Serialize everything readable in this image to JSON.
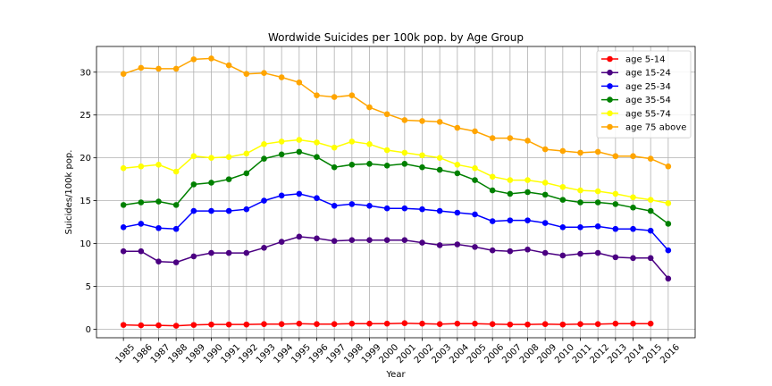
{
  "chart_data": {
    "type": "line",
    "title": "Wordwide Suicides per 100k pop. by Age Group",
    "xlabel": "Year",
    "ylabel": "Suicides/100k pop.",
    "ylim": [
      -1,
      33
    ],
    "yticks": [
      0,
      5,
      10,
      15,
      20,
      25,
      30
    ],
    "grid": true,
    "legend_position": "top-right",
    "x": [
      1985,
      1986,
      1987,
      1988,
      1989,
      1990,
      1991,
      1992,
      1993,
      1994,
      1995,
      1996,
      1997,
      1998,
      1999,
      2000,
      2001,
      2002,
      2003,
      2004,
      2005,
      2006,
      2007,
      2008,
      2009,
      2010,
      2011,
      2012,
      2013,
      2014,
      2015,
      2016
    ],
    "series": [
      {
        "name": "age 5-14",
        "color": "#ff0000",
        "values": [
          0.5,
          0.45,
          0.45,
          0.4,
          0.5,
          0.55,
          0.55,
          0.55,
          0.6,
          0.6,
          0.65,
          0.6,
          0.6,
          0.65,
          0.65,
          0.65,
          0.7,
          0.65,
          0.6,
          0.65,
          0.65,
          0.6,
          0.55,
          0.55,
          0.6,
          0.55,
          0.6,
          0.6,
          0.65,
          0.65,
          0.65,
          null
        ]
      },
      {
        "name": "age 15-24",
        "color": "#4b0082",
        "values": [
          9.1,
          9.1,
          7.9,
          7.8,
          8.5,
          8.9,
          8.9,
          8.9,
          9.5,
          10.2,
          10.8,
          10.6,
          10.3,
          10.4,
          10.4,
          10.4,
          10.4,
          10.1,
          9.8,
          9.9,
          9.6,
          9.2,
          9.1,
          9.3,
          8.9,
          8.6,
          8.8,
          8.9,
          8.4,
          8.3,
          8.3,
          5.9
        ]
      },
      {
        "name": "age 25-34",
        "color": "#0000ff",
        "values": [
          11.9,
          12.3,
          11.8,
          11.7,
          13.8,
          13.8,
          13.8,
          14.0,
          15.0,
          15.6,
          15.8,
          15.3,
          14.4,
          14.6,
          14.4,
          14.1,
          14.1,
          14.0,
          13.8,
          13.6,
          13.4,
          12.6,
          12.7,
          12.7,
          12.4,
          11.9,
          11.9,
          12.0,
          11.7,
          11.7,
          11.5,
          9.2
        ]
      },
      {
        "name": "age 35-54",
        "color": "#008000",
        "values": [
          14.5,
          14.8,
          14.9,
          14.5,
          16.9,
          17.1,
          17.5,
          18.2,
          19.9,
          20.4,
          20.7,
          20.1,
          18.9,
          19.2,
          19.3,
          19.1,
          19.3,
          18.9,
          18.6,
          18.2,
          17.4,
          16.2,
          15.8,
          16.0,
          15.7,
          15.1,
          14.8,
          14.8,
          14.6,
          14.2,
          13.8,
          12.3
        ]
      },
      {
        "name": "age 55-74",
        "color": "#ffff00",
        "values": [
          18.8,
          19.0,
          19.2,
          18.4,
          20.2,
          20.0,
          20.1,
          20.5,
          21.6,
          21.9,
          22.1,
          21.8,
          21.2,
          21.9,
          21.6,
          20.9,
          20.6,
          20.3,
          20.0,
          19.2,
          18.8,
          17.8,
          17.4,
          17.4,
          17.1,
          16.6,
          16.2,
          16.1,
          15.8,
          15.4,
          15.1,
          14.7
        ]
      },
      {
        "name": "age 75 above",
        "color": "#ffa500",
        "values": [
          29.8,
          30.5,
          30.4,
          30.4,
          31.5,
          31.6,
          30.8,
          29.8,
          29.9,
          29.4,
          28.8,
          27.3,
          27.1,
          27.3,
          25.9,
          25.1,
          24.4,
          24.3,
          24.2,
          23.5,
          23.1,
          22.3,
          22.3,
          22.0,
          21.0,
          20.8,
          20.6,
          20.7,
          20.2,
          20.2,
          19.9,
          19.0
        ]
      }
    ]
  }
}
